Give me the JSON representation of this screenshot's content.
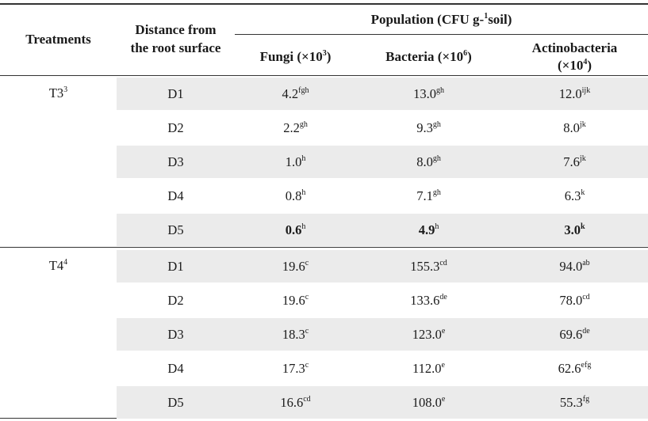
{
  "header": {
    "treatments": "Treatments",
    "distance_line1": "Distance from",
    "distance_line2": "the root surface",
    "population_pre": "Population (CFU g-",
    "population_sup": "1",
    "population_post": "soil)",
    "fungi_pre": "Fungi (×10",
    "fungi_sup": "3",
    "fungi_post": ")",
    "bacteria_pre": "Bacteria (×10",
    "bacteria_sup": "6",
    "bacteria_post": ")",
    "actino_line1": "Actinobacteria",
    "actino_pre": "(×10",
    "actino_sup": "4",
    "actino_post": ")"
  },
  "groups": [
    {
      "treatment": "T3",
      "treatment_sup": "3",
      "rows": [
        {
          "d": "D1",
          "f": "4.2",
          "fs": "fgh",
          "b": "13.0",
          "bs": "gh",
          "a": "12.0",
          "as": "ijk"
        },
        {
          "d": "D2",
          "f": "2.2",
          "fs": "gh",
          "b": "9.3",
          "bs": "gh",
          "a": "8.0",
          "as": "jk"
        },
        {
          "d": "D3",
          "f": "1.0",
          "fs": "h",
          "b": "8.0",
          "bs": "gh",
          "a": "7.6",
          "as": "jk"
        },
        {
          "d": "D4",
          "f": "0.8",
          "fs": "h",
          "b": "7.1",
          "bs": "gh",
          "a": "6.3",
          "as": "k"
        },
        {
          "d": "D5",
          "f": "0.6",
          "fs": "h",
          "b": "4.9",
          "bs": "h",
          "a": "3.0",
          "as": "k"
        }
      ]
    },
    {
      "treatment": "T4",
      "treatment_sup": "4",
      "rows": [
        {
          "d": "D1",
          "f": "19.6",
          "fs": "c",
          "b": "155.3",
          "bs": "cd",
          "a": "94.0",
          "as": "ab"
        },
        {
          "d": "D2",
          "f": "19.6",
          "fs": "c",
          "b": "133.6",
          "bs": "de",
          "a": "78.0",
          "as": "cd"
        },
        {
          "d": "D3",
          "f": "18.3",
          "fs": "c",
          "b": "123.0",
          "bs": "e",
          "a": "69.6",
          "as": "de"
        },
        {
          "d": "D4",
          "f": "17.3",
          "fs": "c",
          "b": "112.0",
          "bs": "e",
          "a": "62.6",
          "as": "efg"
        },
        {
          "d": "D5",
          "f": "16.6",
          "fs": "cd",
          "b": "108.0",
          "bs": "e",
          "a": "55.3",
          "as": "fg"
        }
      ]
    }
  ]
}
